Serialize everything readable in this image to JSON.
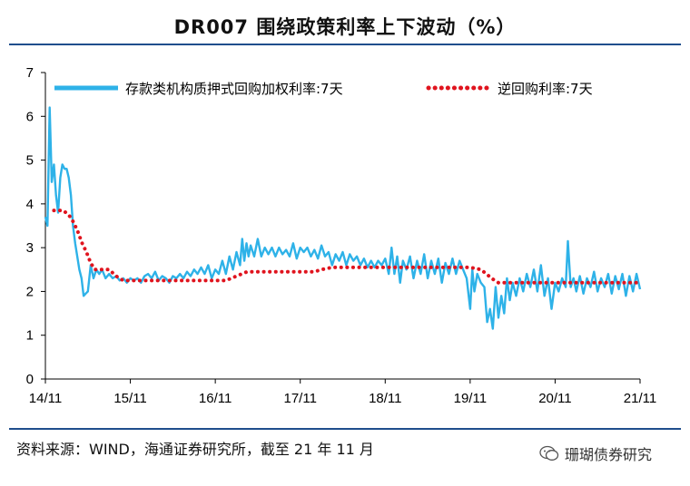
{
  "title": "DR007 围绕政策利率上下波动（%）",
  "source_text": "资料来源：WIND，海通证券研究所，截至 21 年 11 月",
  "watermark_text": "珊瑚债券研究",
  "colors": {
    "dr007": "#2eb2e8",
    "repo": "#e0141e",
    "rule": "#1f4e8c"
  },
  "chart_data": {
    "type": "line",
    "title": "DR007 围绕政策利率上下波动（%）",
    "xlabel": "",
    "ylabel": "",
    "ylim": [
      0,
      7
    ],
    "yticks": [
      "0",
      "1",
      "2",
      "3",
      "4",
      "5",
      "6",
      "7"
    ],
    "xlim": [
      0,
      84
    ],
    "xtick_positions": [
      0,
      12,
      24,
      36,
      48,
      60,
      72,
      84
    ],
    "xticks": [
      "14/11",
      "15/11",
      "16/11",
      "17/11",
      "18/11",
      "19/11",
      "20/11",
      "21/11"
    ],
    "grid": false,
    "legend_position": "top",
    "series": [
      {
        "name": "存款类机构质押式回购加权利率:7天",
        "style": "solid",
        "points": [
          [
            0,
            3.7
          ],
          [
            0.3,
            3.5
          ],
          [
            0.6,
            6.2
          ],
          [
            0.9,
            4.5
          ],
          [
            1.2,
            4.9
          ],
          [
            1.5,
            4.2
          ],
          [
            1.8,
            3.8
          ],
          [
            2.1,
            4.6
          ],
          [
            2.4,
            4.9
          ],
          [
            2.7,
            4.8
          ],
          [
            3.0,
            4.8
          ],
          [
            3.3,
            4.6
          ],
          [
            3.6,
            4.2
          ],
          [
            3.9,
            3.5
          ],
          [
            4.2,
            3.1
          ],
          [
            4.5,
            2.8
          ],
          [
            4.8,
            2.5
          ],
          [
            5.1,
            2.3
          ],
          [
            5.4,
            1.9
          ],
          [
            5.7,
            1.95
          ],
          [
            6.0,
            2.0
          ],
          [
            6.4,
            2.6
          ],
          [
            6.8,
            2.3
          ],
          [
            7.2,
            2.5
          ],
          [
            7.6,
            2.4
          ],
          [
            8.0,
            2.5
          ],
          [
            8.5,
            2.3
          ],
          [
            9.0,
            2.4
          ],
          [
            9.5,
            2.3
          ],
          [
            10,
            2.35
          ],
          [
            10.5,
            2.25
          ],
          [
            11,
            2.3
          ],
          [
            11.5,
            2.2
          ],
          [
            12,
            2.3
          ],
          [
            12.5,
            2.25
          ],
          [
            13,
            2.3
          ],
          [
            13.5,
            2.2
          ],
          [
            14,
            2.35
          ],
          [
            14.5,
            2.4
          ],
          [
            15,
            2.3
          ],
          [
            15.5,
            2.45
          ],
          [
            16,
            2.25
          ],
          [
            16.5,
            2.35
          ],
          [
            17,
            2.3
          ],
          [
            17.5,
            2.2
          ],
          [
            18,
            2.35
          ],
          [
            18.5,
            2.3
          ],
          [
            19,
            2.4
          ],
          [
            19.5,
            2.3
          ],
          [
            20,
            2.45
          ],
          [
            20.5,
            2.35
          ],
          [
            21,
            2.5
          ],
          [
            21.5,
            2.4
          ],
          [
            22,
            2.55
          ],
          [
            22.5,
            2.4
          ],
          [
            23,
            2.6
          ],
          [
            23.5,
            2.3
          ],
          [
            24,
            2.5
          ],
          [
            24.5,
            2.4
          ],
          [
            25,
            2.7
          ],
          [
            25.5,
            2.4
          ],
          [
            26,
            2.8
          ],
          [
            26.5,
            2.5
          ],
          [
            27,
            2.9
          ],
          [
            27.5,
            2.6
          ],
          [
            27.8,
            3.2
          ],
          [
            28.1,
            2.7
          ],
          [
            28.4,
            3.1
          ],
          [
            28.7,
            2.8
          ],
          [
            29,
            3.05
          ],
          [
            29.5,
            2.8
          ],
          [
            30,
            3.2
          ],
          [
            30.5,
            2.8
          ],
          [
            31,
            3.0
          ],
          [
            31.5,
            2.85
          ],
          [
            32,
            3.0
          ],
          [
            32.5,
            2.8
          ],
          [
            33,
            3.0
          ],
          [
            33.5,
            2.85
          ],
          [
            34,
            2.95
          ],
          [
            34.5,
            2.8
          ],
          [
            35,
            3.1
          ],
          [
            35.5,
            2.75
          ],
          [
            36,
            3.0
          ],
          [
            36.5,
            2.9
          ],
          [
            37,
            3.0
          ],
          [
            37.5,
            2.8
          ],
          [
            38,
            2.95
          ],
          [
            38.5,
            2.75
          ],
          [
            39,
            3.05
          ],
          [
            39.5,
            2.8
          ],
          [
            40,
            2.9
          ],
          [
            40.5,
            2.6
          ],
          [
            41,
            2.85
          ],
          [
            41.5,
            2.7
          ],
          [
            42,
            2.9
          ],
          [
            42.5,
            2.6
          ],
          [
            43,
            2.85
          ],
          [
            43.5,
            2.7
          ],
          [
            44,
            2.8
          ],
          [
            44.5,
            2.6
          ],
          [
            45,
            2.75
          ],
          [
            45.5,
            2.55
          ],
          [
            46,
            2.7
          ],
          [
            46.5,
            2.55
          ],
          [
            47,
            2.7
          ],
          [
            47.5,
            2.6
          ],
          [
            48,
            2.75
          ],
          [
            48.5,
            2.4
          ],
          [
            48.9,
            3.0
          ],
          [
            49.3,
            2.4
          ],
          [
            49.7,
            2.8
          ],
          [
            50.1,
            2.2
          ],
          [
            50.5,
            2.7
          ],
          [
            51,
            2.5
          ],
          [
            51.5,
            2.8
          ],
          [
            52,
            2.3
          ],
          [
            52.5,
            2.7
          ],
          [
            53,
            2.4
          ],
          [
            53.5,
            2.85
          ],
          [
            54,
            2.3
          ],
          [
            54.5,
            2.7
          ],
          [
            55,
            2.4
          ],
          [
            55.5,
            2.75
          ],
          [
            56,
            2.2
          ],
          [
            56.5,
            2.65
          ],
          [
            57,
            2.4
          ],
          [
            57.5,
            2.75
          ],
          [
            58,
            2.4
          ],
          [
            58.5,
            2.7
          ],
          [
            59,
            2.5
          ],
          [
            59.5,
            2.3
          ],
          [
            60,
            1.6
          ],
          [
            60.3,
            2.5
          ],
          [
            60.6,
            2.0
          ],
          [
            61,
            2.4
          ],
          [
            61.5,
            2.2
          ],
          [
            62,
            2.1
          ],
          [
            62.4,
            1.3
          ],
          [
            62.8,
            1.6
          ],
          [
            63.2,
            1.15
          ],
          [
            63.6,
            2.1
          ],
          [
            64,
            1.4
          ],
          [
            64.4,
            1.9
          ],
          [
            64.8,
            1.5
          ],
          [
            65.2,
            2.3
          ],
          [
            65.6,
            1.8
          ],
          [
            66,
            2.2
          ],
          [
            66.5,
            1.9
          ],
          [
            67,
            2.3
          ],
          [
            67.5,
            2.0
          ],
          [
            68,
            2.4
          ],
          [
            68.5,
            2.1
          ],
          [
            69,
            2.5
          ],
          [
            69.5,
            2.0
          ],
          [
            70,
            2.6
          ],
          [
            70.5,
            1.9
          ],
          [
            71,
            2.3
          ],
          [
            71.5,
            1.6
          ],
          [
            72,
            2.2
          ],
          [
            72.5,
            2.0
          ],
          [
            73,
            2.3
          ],
          [
            73.5,
            2.1
          ],
          [
            73.8,
            3.15
          ],
          [
            74.2,
            2.1
          ],
          [
            74.6,
            2.3
          ],
          [
            75,
            2.0
          ],
          [
            75.5,
            2.35
          ],
          [
            76,
            1.95
          ],
          [
            76.5,
            2.3
          ],
          [
            77,
            2.1
          ],
          [
            77.5,
            2.45
          ],
          [
            78,
            2.0
          ],
          [
            78.5,
            2.3
          ],
          [
            79,
            2.1
          ],
          [
            79.5,
            2.4
          ],
          [
            80,
            1.95
          ],
          [
            80.5,
            2.35
          ],
          [
            81,
            2.05
          ],
          [
            81.5,
            2.4
          ],
          [
            82,
            1.9
          ],
          [
            82.5,
            2.35
          ],
          [
            83,
            2.0
          ],
          [
            83.5,
            2.4
          ],
          [
            84,
            2.05
          ]
        ]
      },
      {
        "name": "逆回购利率:7天",
        "style": "dotted",
        "points": [
          [
            1.2,
            3.85
          ],
          [
            2.5,
            3.85
          ],
          [
            3.3,
            3.75
          ],
          [
            3.9,
            3.6
          ],
          [
            4.5,
            3.4
          ],
          [
            5.2,
            3.1
          ],
          [
            5.8,
            2.9
          ],
          [
            6.4,
            2.65
          ],
          [
            7.0,
            2.5
          ],
          [
            9.0,
            2.5
          ],
          [
            10.0,
            2.35
          ],
          [
            11.0,
            2.25
          ],
          [
            17.5,
            2.25
          ],
          [
            23.0,
            2.25
          ],
          [
            25.5,
            2.25
          ],
          [
            27.0,
            2.35
          ],
          [
            28.5,
            2.45
          ],
          [
            38.0,
            2.45
          ],
          [
            39.0,
            2.5
          ],
          [
            40.5,
            2.55
          ],
          [
            47.0,
            2.55
          ],
          [
            48.0,
            2.55
          ],
          [
            60.0,
            2.55
          ],
          [
            61.5,
            2.5
          ],
          [
            62.3,
            2.4
          ],
          [
            63.0,
            2.3
          ],
          [
            64.0,
            2.2
          ],
          [
            84.0,
            2.2
          ]
        ]
      }
    ]
  }
}
